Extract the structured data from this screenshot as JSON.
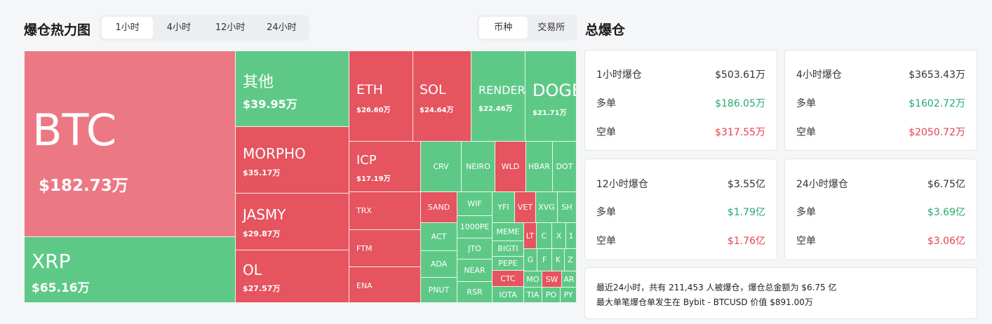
{
  "header": {
    "title": "爆仓热力图",
    "time_tabs": [
      "1小时",
      "4小时",
      "12小时",
      "24小时"
    ],
    "mode_tabs": [
      "币种",
      "交易所"
    ],
    "summary_title": "总爆仓"
  },
  "colors": {
    "red": "#e5545f",
    "pink": "#ec7884",
    "green": "#5ec987",
    "long_text": "#23a96e",
    "short_text": "#e5414e"
  },
  "treemap": {
    "BTC": {
      "symbol": "BTC",
      "value": "$182.73万"
    },
    "XRP": {
      "symbol": "XRP",
      "value": "$65.16万"
    },
    "OTHER": {
      "symbol": "其他",
      "value": "$39.95万"
    },
    "MORPHO": {
      "symbol": "MORPHO",
      "value": "$35.17万"
    },
    "JASMY": {
      "symbol": "JASMY",
      "value": "$29.87万"
    },
    "OL": {
      "symbol": "OL",
      "value": "$27.57万"
    },
    "ETH": {
      "symbol": "ETH",
      "value": "$26.60万"
    },
    "SOL": {
      "symbol": "SOL",
      "value": "$24.64万"
    },
    "RENDER": {
      "symbol": "RENDER",
      "value": "$22.46万"
    },
    "DOGE": {
      "symbol": "DOGE",
      "value": "$21.71万"
    },
    "ICP": {
      "symbol": "ICP",
      "value": "$17.19万"
    },
    "small": {
      "TRX": "TRX",
      "FTM": "FTM",
      "ENA": "ENA",
      "CRV": "CRV",
      "NEIRO": "NEIRO",
      "WLD": "WLD",
      "HBAR": "HBAR",
      "DOT": "DOT",
      "SAND": "SAND",
      "WIF": "WIF",
      "YFI": "YFI",
      "VET": "VET",
      "XVG": "XVG",
      "SH": "SH",
      "ACT": "ACT",
      "PEPE1000": "1000PE",
      "MEME": "MEME",
      "LT": "LT",
      "C": "C",
      "X": "X",
      "ONE": "1",
      "JTO": "JTO",
      "BIGTIME": "BIGTI",
      "ADA": "ADA",
      "NEAR": "NEAR",
      "PEPE": "PEPE",
      "G": "G",
      "F": "F",
      "K": "K",
      "Z": "Z",
      "CTC": "CTC",
      "MO": "MO",
      "SW": "SW",
      "AR": "AR",
      "PNUT": "PNUT",
      "RSR": "RSR",
      "IOTA": "IOTA",
      "TIA": "TIA",
      "PO": "PO",
      "PY": "PY"
    }
  },
  "summary": {
    "h1": {
      "title": "1小时爆仓",
      "total": "$503.61万",
      "long_label": "多单",
      "long": "$186.05万",
      "short_label": "空单",
      "short": "$317.55万"
    },
    "h4": {
      "title": "4小时爆仓",
      "total": "$3653.43万",
      "long_label": "多单",
      "long": "$1602.72万",
      "short_label": "空单",
      "short": "$2050.72万"
    },
    "h12": {
      "title": "12小时爆仓",
      "total": "$3.55亿",
      "long_label": "多单",
      "long": "$1.79亿",
      "short_label": "空单",
      "short": "$1.76亿"
    },
    "h24": {
      "title": "24小时爆仓",
      "total": "$6.75亿",
      "long_label": "多单",
      "long": "$3.69亿",
      "short_label": "空单",
      "short": "$3.06亿"
    }
  },
  "info": {
    "line1": "最近24小时，共有 211,453 人被爆仓，爆仓总金额为 $6.75 亿",
    "line2": "最大单笔爆仓单发生在 Bybit - BTCUSD 价值 $891.00万"
  }
}
